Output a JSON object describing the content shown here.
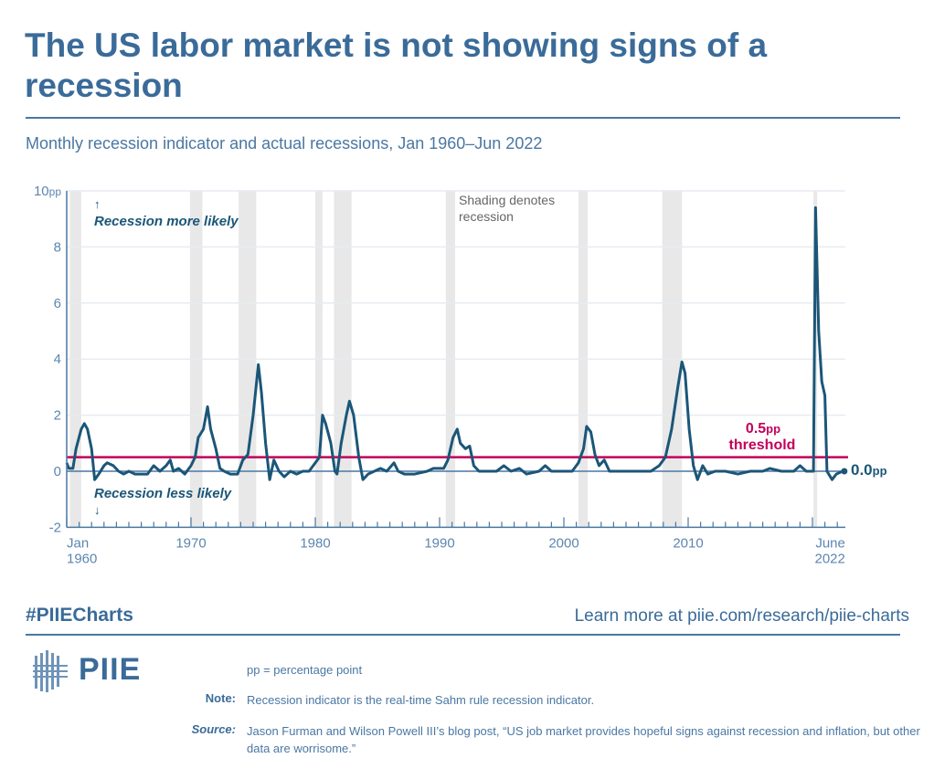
{
  "header": {
    "title": "The US labor market is not showing signs of a recession",
    "subtitle": "Monthly recession indicator and actual recessions, Jan 1960–Jun 2022"
  },
  "colors": {
    "title": "#3a6b99",
    "series": "#1b5678",
    "threshold": "#c3005a",
    "recession_shading": "#e8e8e8",
    "axis": "#4a77a3"
  },
  "chart_data": {
    "type": "line",
    "title": "",
    "xlabel": "",
    "ylabel": "",
    "ylim": [
      -2,
      10
    ],
    "xlim": [
      "1960-01",
      "2022-06"
    ],
    "grid": true,
    "y_ticks": [
      {
        "value": 10,
        "label": "10",
        "unit": "pp"
      },
      {
        "value": 8,
        "label": "8"
      },
      {
        "value": 6,
        "label": "6"
      },
      {
        "value": 4,
        "label": "4"
      },
      {
        "value": 2,
        "label": "2"
      },
      {
        "value": 0,
        "label": "0"
      },
      {
        "value": -2,
        "label": "-2"
      }
    ],
    "x_tick_labels": [
      {
        "date": "1960-01",
        "line1": "Jan",
        "line2": "1960"
      },
      {
        "date": "1970-01",
        "line1": "1970",
        "line2": ""
      },
      {
        "date": "1980-01",
        "line1": "1980",
        "line2": ""
      },
      {
        "date": "1990-01",
        "line1": "1990",
        "line2": ""
      },
      {
        "date": "2000-01",
        "line1": "2000",
        "line2": ""
      },
      {
        "date": "2010-01",
        "line1": "2010",
        "line2": ""
      },
      {
        "date": "2022-06",
        "line1": "June",
        "line2": "2022"
      }
    ],
    "threshold": {
      "value": 0.5,
      "label_value": "0.5",
      "label_unit": "pp",
      "label_text": "threshold"
    },
    "end_label": {
      "value": "0.0",
      "unit": "pp"
    },
    "annotations": {
      "up_arrow": "↑",
      "more_likely": "Recession more likely",
      "less_likely": "Recession less likely",
      "down_arrow": "↓",
      "shading_note_1": "Shading denotes",
      "shading_note_2": "recession"
    },
    "recessions": [
      [
        "1960-04",
        "1961-02"
      ],
      [
        "1969-12",
        "1970-11"
      ],
      [
        "1973-11",
        "1975-03"
      ],
      [
        "1980-01",
        "1980-07"
      ],
      [
        "1981-07",
        "1982-11"
      ],
      [
        "1990-07",
        "1991-03"
      ],
      [
        "2001-03",
        "2001-11"
      ],
      [
        "2007-12",
        "2009-06"
      ],
      [
        "2020-02",
        "2020-04"
      ]
    ],
    "series": [
      {
        "values": [
          [
            "1960-01",
            0.3
          ],
          [
            "1960-03",
            0.1
          ],
          [
            "1960-07",
            0.1
          ],
          [
            "1960-10",
            0.8
          ],
          [
            "1961-03",
            1.5
          ],
          [
            "1961-06",
            1.7
          ],
          [
            "1961-09",
            1.5
          ],
          [
            "1962-01",
            0.8
          ],
          [
            "1962-04",
            -0.3
          ],
          [
            "1962-08",
            -0.1
          ],
          [
            "1963-01",
            0.2
          ],
          [
            "1963-04",
            0.3
          ],
          [
            "1963-10",
            0.2
          ],
          [
            "1964-03",
            0.0
          ],
          [
            "1964-08",
            -0.1
          ],
          [
            "1965-01",
            0.0
          ],
          [
            "1965-07",
            -0.1
          ],
          [
            "1966-01",
            -0.1
          ],
          [
            "1966-07",
            -0.1
          ],
          [
            "1967-01",
            0.2
          ],
          [
            "1967-07",
            0.0
          ],
          [
            "1968-01",
            0.2
          ],
          [
            "1968-05",
            0.4
          ],
          [
            "1968-08",
            0.0
          ],
          [
            "1969-01",
            0.1
          ],
          [
            "1969-07",
            -0.1
          ],
          [
            "1970-01",
            0.2
          ],
          [
            "1970-05",
            0.5
          ],
          [
            "1970-08",
            1.2
          ],
          [
            "1971-01",
            1.5
          ],
          [
            "1971-05",
            2.3
          ],
          [
            "1971-08",
            1.5
          ],
          [
            "1972-01",
            0.8
          ],
          [
            "1972-05",
            0.1
          ],
          [
            "1972-09",
            0.0
          ],
          [
            "1973-03",
            -0.1
          ],
          [
            "1973-10",
            -0.1
          ],
          [
            "1974-03",
            0.4
          ],
          [
            "1974-08",
            0.6
          ],
          [
            "1975-01",
            2.0
          ],
          [
            "1975-06",
            3.8
          ],
          [
            "1975-09",
            2.8
          ],
          [
            "1976-01",
            1.0
          ],
          [
            "1976-05",
            -0.3
          ],
          [
            "1976-09",
            0.4
          ],
          [
            "1977-02",
            0.0
          ],
          [
            "1977-07",
            -0.2
          ],
          [
            "1978-01",
            0.0
          ],
          [
            "1978-07",
            -0.1
          ],
          [
            "1979-01",
            0.0
          ],
          [
            "1979-07",
            0.0
          ],
          [
            "1980-01",
            0.3
          ],
          [
            "1980-05",
            0.5
          ],
          [
            "1980-08",
            2.0
          ],
          [
            "1980-11",
            1.7
          ],
          [
            "1981-04",
            1.0
          ],
          [
            "1981-08",
            0.0
          ],
          [
            "1981-10",
            -0.1
          ],
          [
            "1982-02",
            1.0
          ],
          [
            "1982-07",
            2.0
          ],
          [
            "1982-10",
            2.5
          ],
          [
            "1983-02",
            2.0
          ],
          [
            "1983-07",
            0.5
          ],
          [
            "1983-11",
            -0.3
          ],
          [
            "1984-04",
            -0.1
          ],
          [
            "1984-10",
            0.0
          ],
          [
            "1985-04",
            0.1
          ],
          [
            "1985-10",
            0.0
          ],
          [
            "1986-05",
            0.3
          ],
          [
            "1986-09",
            0.0
          ],
          [
            "1987-03",
            -0.1
          ],
          [
            "1988-01",
            -0.1
          ],
          [
            "1989-01",
            0.0
          ],
          [
            "1989-07",
            0.1
          ],
          [
            "1990-05",
            0.1
          ],
          [
            "1990-09",
            0.4
          ],
          [
            "1991-02",
            1.2
          ],
          [
            "1991-06",
            1.5
          ],
          [
            "1991-09",
            1.0
          ],
          [
            "1992-02",
            0.8
          ],
          [
            "1992-06",
            0.9
          ],
          [
            "1992-10",
            0.2
          ],
          [
            "1993-03",
            0.0
          ],
          [
            "1994-01",
            0.0
          ],
          [
            "1994-08",
            0.0
          ],
          [
            "1995-03",
            0.2
          ],
          [
            "1995-10",
            0.0
          ],
          [
            "1996-06",
            0.1
          ],
          [
            "1997-01",
            -0.1
          ],
          [
            "1998-01",
            0.0
          ],
          [
            "1998-07",
            0.2
          ],
          [
            "1999-01",
            0.0
          ],
          [
            "2000-01",
            0.0
          ],
          [
            "2000-09",
            0.0
          ],
          [
            "2001-03",
            0.3
          ],
          [
            "2001-08",
            0.8
          ],
          [
            "2001-11",
            1.6
          ],
          [
            "2002-03",
            1.4
          ],
          [
            "2002-07",
            0.6
          ],
          [
            "2002-11",
            0.2
          ],
          [
            "2003-04",
            0.4
          ],
          [
            "2003-09",
            0.0
          ],
          [
            "2004-04",
            0.0
          ],
          [
            "2005-01",
            0.0
          ],
          [
            "2006-01",
            0.0
          ],
          [
            "2007-01",
            0.0
          ],
          [
            "2007-09",
            0.2
          ],
          [
            "2008-03",
            0.5
          ],
          [
            "2008-09",
            1.5
          ],
          [
            "2009-03",
            3.0
          ],
          [
            "2009-07",
            3.9
          ],
          [
            "2009-10",
            3.5
          ],
          [
            "2010-02",
            1.5
          ],
          [
            "2010-06",
            0.2
          ],
          [
            "2010-10",
            -0.3
          ],
          [
            "2011-03",
            0.2
          ],
          [
            "2011-08",
            -0.1
          ],
          [
            "2012-03",
            0.0
          ],
          [
            "2013-01",
            0.0
          ],
          [
            "2014-01",
            -0.1
          ],
          [
            "2015-01",
            0.0
          ],
          [
            "2016-01",
            0.0
          ],
          [
            "2016-08",
            0.1
          ],
          [
            "2017-07",
            0.0
          ],
          [
            "2018-07",
            0.0
          ],
          [
            "2019-01",
            0.2
          ],
          [
            "2019-07",
            0.0
          ],
          [
            "2020-02",
            0.0
          ],
          [
            "2020-04",
            9.4
          ],
          [
            "2020-07",
            5.0
          ],
          [
            "2020-10",
            3.2
          ],
          [
            "2021-01",
            2.7
          ],
          [
            "2021-03",
            0.0
          ],
          [
            "2021-08",
            -0.3
          ],
          [
            "2021-12",
            -0.1
          ],
          [
            "2022-06",
            0.0
          ]
        ]
      }
    ]
  },
  "footer": {
    "hashtag": "#PIIECharts",
    "link": "Learn more at piie.com/research/piie-charts",
    "logo_text": "PIIE",
    "pp_note": "pp = percentage point",
    "note_label": "Note:",
    "note_text": "Recession indicator is the real-time Sahm rule recession indicator.",
    "source_label": "Source:",
    "source_text": "Jason Furman and Wilson Powell III’s blog post, “US job market provides hopeful signs against recession and inflation, but other data are worrisome.”"
  }
}
